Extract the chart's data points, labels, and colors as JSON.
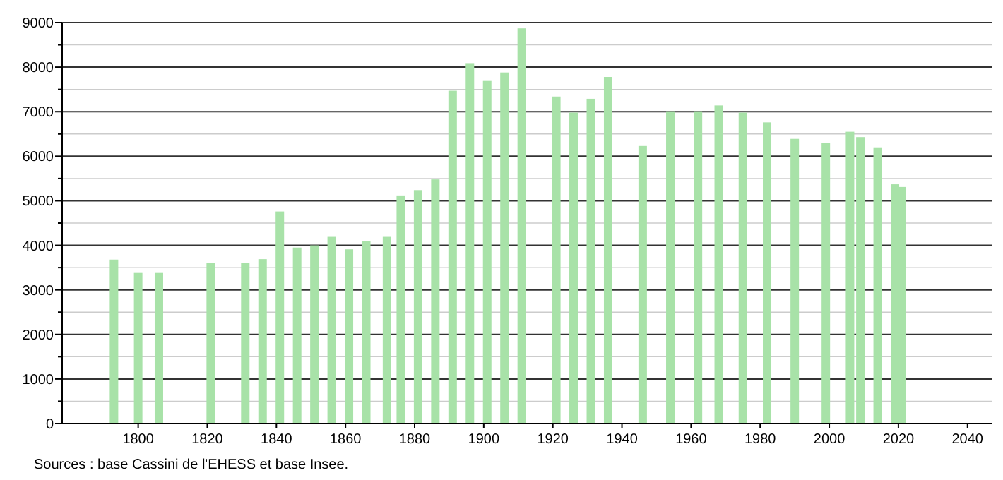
{
  "chart_data": {
    "type": "bar",
    "color": "#a8e2a8",
    "x": [
      1793,
      1800,
      1806,
      1821,
      1831,
      1836,
      1841,
      1846,
      1851,
      1856,
      1861,
      1866,
      1872,
      1876,
      1881,
      1886,
      1891,
      1896,
      1901,
      1906,
      1911,
      1921,
      1926,
      1931,
      1936,
      1946,
      1954,
      1962,
      1968,
      1975,
      1982,
      1990,
      1999,
      2006,
      2009,
      2014,
      2019,
      2021
    ],
    "values": [
      3680,
      3380,
      3380,
      3600,
      3610,
      3690,
      4760,
      3950,
      4000,
      4190,
      3910,
      4100,
      4190,
      5120,
      5240,
      5480,
      7470,
      8090,
      7690,
      7880,
      8870,
      7340,
      6980,
      7290,
      7780,
      6230,
      7010,
      7010,
      7140,
      6980,
      6760,
      6390,
      6300,
      6550,
      6430,
      6200,
      5370,
      5310
    ],
    "xlim": [
      1778,
      2047
    ],
    "xticks": [
      1800,
      1820,
      1840,
      1860,
      1880,
      1900,
      1920,
      1940,
      1960,
      1980,
      2000,
      2020,
      2040
    ],
    "ylim": [
      0,
      9000
    ],
    "yticks": [
      0,
      {
        "value": 500,
        "label": null
      },
      1000,
      {
        "value": 1500,
        "label": null
      },
      2000,
      {
        "value": 2500,
        "label": null
      },
      3000,
      {
        "value": 3500,
        "label": null
      },
      4000,
      {
        "value": 4500,
        "label": null
      },
      5000,
      {
        "value": 5500,
        "label": null
      },
      6000,
      {
        "value": 6500,
        "label": null
      },
      7000,
      {
        "value": 7500,
        "label": null
      },
      8000,
      {
        "value": 8500,
        "label": null
      },
      9000
    ],
    "grid": "y",
    "annotations": [
      "Sources : base Cassini de l'EHESS et base Insee."
    ]
  }
}
